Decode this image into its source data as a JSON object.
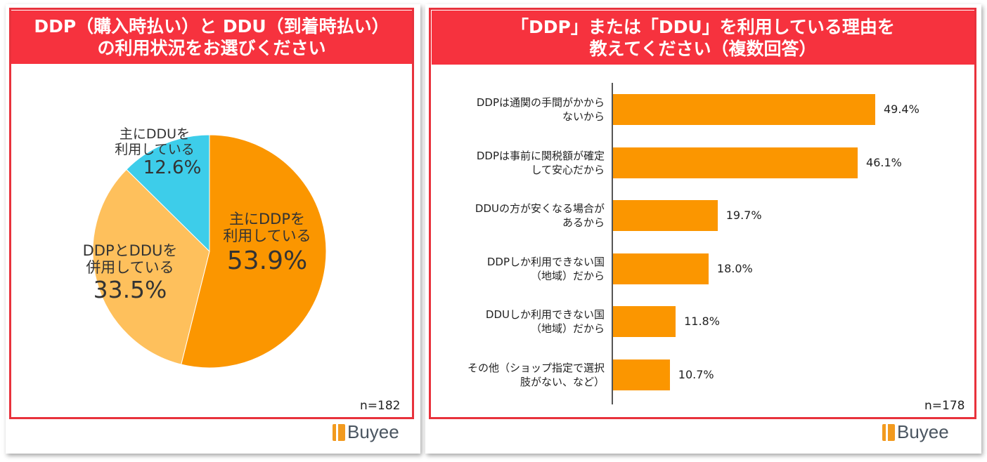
{
  "left": {
    "title_lines": [
      "DDP（購入時払い）と DDU（到着時払い）",
      "の利用状況をお選びください"
    ],
    "n": "n=182",
    "logo": "Buyee"
  },
  "right": {
    "title_lines": [
      "「DDP」または「DDU」を利用している理由を",
      "教えてください（複数回答）"
    ],
    "n": "n=178",
    "logo": "Buyee"
  },
  "chart_data": [
    {
      "type": "pie",
      "title": "DDP（購入時払い）と DDU（到着時払い）の利用状況をお選びください",
      "slices": [
        {
          "label_lines": [
            "主にDDPを",
            "利用している"
          ],
          "value": 53.9,
          "display": "53.9%",
          "color": "#fb9600"
        },
        {
          "label_lines": [
            "DDPとDDUを",
            "併用している"
          ],
          "value": 33.5,
          "display": "33.5%",
          "color": "#fec05c"
        },
        {
          "label_lines": [
            "主にDDUを",
            "利用している"
          ],
          "value": 12.6,
          "display": "12.6%",
          "color": "#3dcdea"
        }
      ]
    },
    {
      "type": "bar",
      "orientation": "horizontal",
      "title": "「DDP」または「DDU」を利用している理由を教えてください（複数回答）",
      "xlim": [
        0,
        55
      ],
      "color": "#fb9600",
      "categories": [
        [
          "DDPは通関の手間がかから",
          "ないから"
        ],
        [
          "DDPは事前に関税額が確定",
          "して安心だから"
        ],
        [
          "DDUの方が安くなる場合が",
          "あるから"
        ],
        [
          "DDPしか利用できない国",
          "（地域）だから"
        ],
        [
          "DDUしか利用できない国",
          "（地域）だから"
        ],
        [
          "その他（ショップ指定で選択",
          "肢がない、など）"
        ]
      ],
      "values": [
        49.4,
        46.1,
        19.7,
        18.0,
        11.8,
        10.7
      ],
      "labels": [
        "49.4%",
        "46.1%",
        "19.7%",
        "18.0%",
        "11.8%",
        "10.7%"
      ]
    }
  ]
}
